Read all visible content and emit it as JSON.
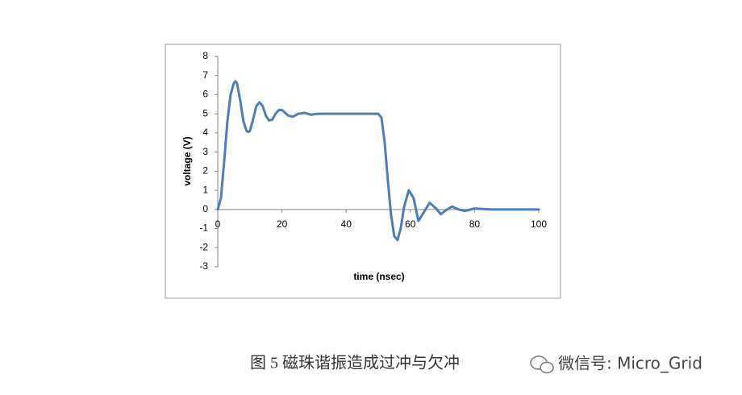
{
  "chart_data": {
    "type": "line",
    "x_label": "time (nsec)",
    "y_label": "voltage (V)",
    "caption": "图 5 磁珠谐振造成过冲与欠冲",
    "watermark": "微信号: Micro_Grid",
    "x": [
      0,
      1,
      2,
      3,
      4,
      5,
      5.5,
      6,
      7,
      8,
      9,
      9.5,
      10,
      11,
      12,
      13,
      14,
      15,
      16,
      17,
      18,
      19,
      20,
      21,
      22,
      23.5,
      25,
      27,
      29,
      31,
      35,
      40,
      45,
      50,
      51,
      52,
      53,
      54,
      55,
      56,
      57,
      58,
      59.5,
      61,
      62.5,
      64,
      66,
      68,
      69.5,
      71,
      73,
      75,
      77,
      80,
      85,
      90,
      100
    ],
    "series": [
      {
        "color": "#4a7ebb",
        "values": [
          0,
          0.6,
          2.5,
          4.6,
          6.0,
          6.6,
          6.7,
          6.6,
          5.7,
          4.6,
          4.1,
          4.05,
          4.1,
          4.7,
          5.4,
          5.6,
          5.4,
          4.9,
          4.65,
          4.7,
          5.0,
          5.2,
          5.2,
          5.05,
          4.9,
          4.85,
          5.0,
          5.05,
          4.95,
          5.0,
          5.0,
          5.0,
          5.0,
          5.0,
          4.8,
          3.5,
          1.5,
          -0.3,
          -1.4,
          -1.6,
          -1.0,
          0.1,
          1.0,
          0.6,
          -0.6,
          -0.2,
          0.35,
          0.05,
          -0.25,
          -0.05,
          0.15,
          0.0,
          -0.08,
          0.05,
          0.0,
          0.0,
          0.0
        ]
      }
    ],
    "xlim": [
      0,
      100
    ],
    "xticks": [
      0,
      20,
      40,
      60,
      80,
      100
    ],
    "ylim": [
      -3,
      8
    ],
    "yticks": [
      -3,
      -2,
      -1,
      0,
      1,
      2,
      3,
      4,
      5,
      6,
      7,
      8
    ],
    "grid": false
  }
}
